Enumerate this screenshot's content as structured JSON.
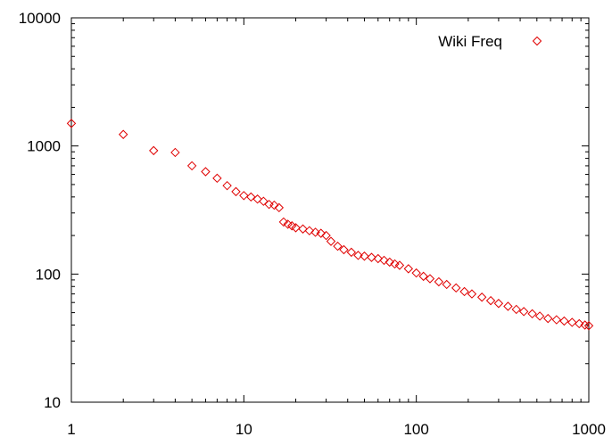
{
  "chart_data": {
    "type": "scatter",
    "title": "",
    "xlabel": "",
    "ylabel": "",
    "xscale": "log",
    "yscale": "log",
    "xlim": [
      1,
      1000
    ],
    "ylim": [
      10,
      10000
    ],
    "grid": false,
    "legend": {
      "position": "top-right"
    },
    "x_ticks": [
      {
        "value": 1,
        "label": "1"
      },
      {
        "value": 10,
        "label": "10"
      },
      {
        "value": 100,
        "label": "100"
      },
      {
        "value": 1000,
        "label": "1000"
      }
    ],
    "y_ticks": [
      {
        "value": 10,
        "label": "10"
      },
      {
        "value": 100,
        "label": "100"
      },
      {
        "value": 1000,
        "label": "1000"
      },
      {
        "value": 10000,
        "label": "10000"
      }
    ],
    "series": [
      {
        "name": "Wiki Freq",
        "color": "#e00000",
        "marker": "diamond",
        "points": [
          [
            1,
            1500
          ],
          [
            2,
            1230
          ],
          [
            3,
            920
          ],
          [
            4,
            890
          ],
          [
            5,
            700
          ],
          [
            6,
            630
          ],
          [
            7,
            560
          ],
          [
            8,
            490
          ],
          [
            9,
            440
          ],
          [
            10,
            410
          ],
          [
            11,
            400
          ],
          [
            12,
            385
          ],
          [
            13,
            370
          ],
          [
            14,
            350
          ],
          [
            15,
            345
          ],
          [
            16,
            330
          ],
          [
            17,
            255
          ],
          [
            18,
            245
          ],
          [
            19,
            238
          ],
          [
            20,
            230
          ],
          [
            22,
            225
          ],
          [
            24,
            218
          ],
          [
            26,
            212
          ],
          [
            28,
            208
          ],
          [
            30,
            200
          ],
          [
            32,
            180
          ],
          [
            35,
            165
          ],
          [
            38,
            155
          ],
          [
            42,
            148
          ],
          [
            46,
            140
          ],
          [
            50,
            138
          ],
          [
            55,
            135
          ],
          [
            60,
            132
          ],
          [
            65,
            128
          ],
          [
            70,
            124
          ],
          [
            75,
            120
          ],
          [
            80,
            117
          ],
          [
            90,
            110
          ],
          [
            100,
            102
          ],
          [
            110,
            96
          ],
          [
            120,
            92
          ],
          [
            135,
            87
          ],
          [
            150,
            83
          ],
          [
            170,
            78
          ],
          [
            190,
            73
          ],
          [
            210,
            70
          ],
          [
            240,
            66
          ],
          [
            270,
            62
          ],
          [
            300,
            59
          ],
          [
            340,
            56
          ],
          [
            380,
            53
          ],
          [
            420,
            51
          ],
          [
            470,
            49
          ],
          [
            520,
            47
          ],
          [
            580,
            45
          ],
          [
            650,
            44
          ],
          [
            720,
            43
          ],
          [
            800,
            42
          ],
          [
            880,
            41
          ],
          [
            950,
            40
          ],
          [
            1000,
            39.5
          ]
        ]
      }
    ]
  }
}
